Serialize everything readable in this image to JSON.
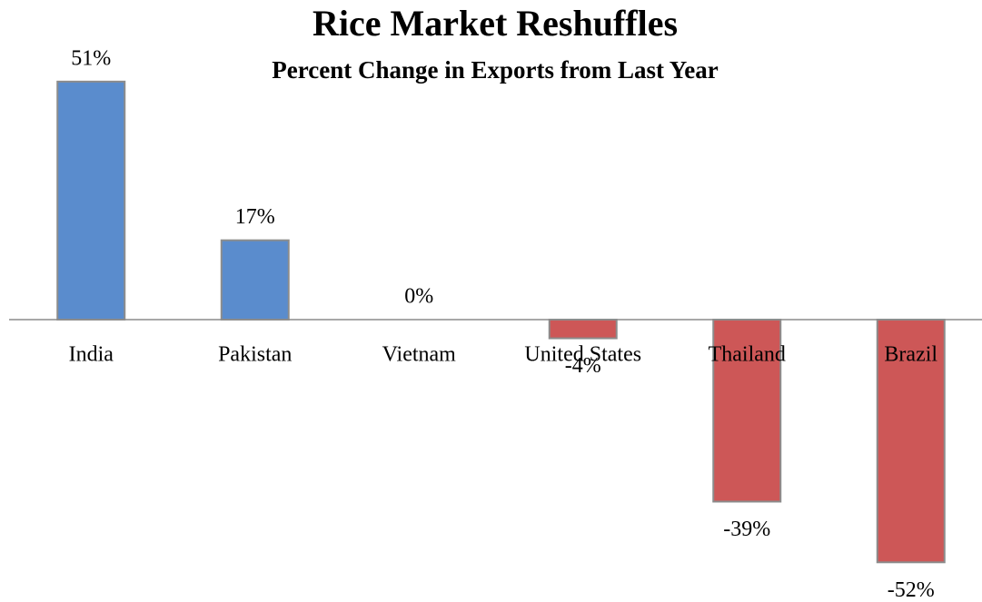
{
  "chart_data": {
    "type": "bar",
    "title": "Rice Market Reshuffles",
    "subtitle": "Percent Change in Exports from Last Year",
    "categories": [
      "India",
      "Pakistan",
      "Vietnam",
      "United States",
      "Thailand",
      "Brazil"
    ],
    "values": [
      51,
      17,
      0,
      -4,
      -39,
      -52
    ],
    "value_labels": [
      "51%",
      "17%",
      "0%",
      "-4%",
      "-39%",
      "-52%"
    ],
    "positive_color": "#5a8ccd",
    "negative_color": "#cd5757",
    "ylim": [
      -55,
      55
    ]
  }
}
